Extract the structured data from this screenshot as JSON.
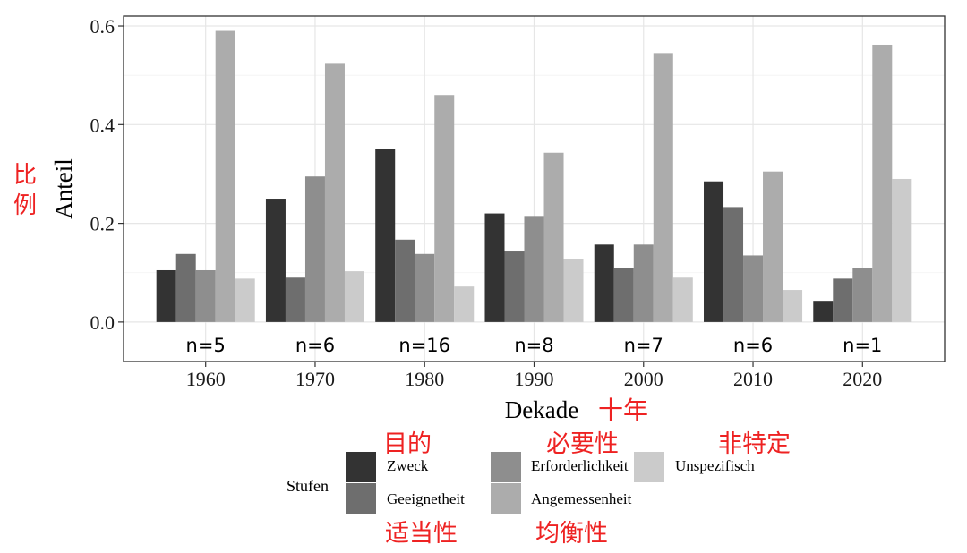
{
  "chart_data": {
    "type": "bar",
    "categories": [
      "1960",
      "1970",
      "1980",
      "1990",
      "2000",
      "2010",
      "2020"
    ],
    "n_labels": [
      "n=5",
      "n=6",
      "n=16",
      "n=8",
      "n=7",
      "n=6",
      "n=1"
    ],
    "series": [
      {
        "name": "Zweck",
        "color": "#333333",
        "values": [
          0.105,
          0.25,
          0.35,
          0.22,
          0.157,
          0.285,
          0.043
        ]
      },
      {
        "name": "Geeignetheit",
        "color": "#6e6e6e",
        "values": [
          0.138,
          0.09,
          0.167,
          0.143,
          0.11,
          0.233,
          0.088
        ]
      },
      {
        "name": "Erforderlichkeit",
        "color": "#8e8e8e",
        "values": [
          0.105,
          0.295,
          0.138,
          0.215,
          0.157,
          0.135,
          0.11
        ]
      },
      {
        "name": "Angemessenheit",
        "color": "#acacac",
        "values": [
          0.59,
          0.525,
          0.46,
          0.343,
          0.545,
          0.305,
          0.562
        ]
      },
      {
        "name": "Unspezifisch",
        "color": "#cbcbcb",
        "values": [
          0.088,
          0.103,
          0.072,
          0.128,
          0.09,
          0.065,
          0.29
        ]
      }
    ],
    "y_ticks": [
      "0.0",
      "0.2",
      "0.4",
      "0.6"
    ],
    "xlabel": "Dekade",
    "ylabel": "Anteil",
    "ylim": [
      -0.08,
      0.62
    ],
    "grid": true,
    "legend": {
      "title": "Stufen",
      "position": "bottom"
    }
  },
  "annotations": {
    "ylabel_cn": [
      "比",
      "例"
    ],
    "xlabel_cn": "十年",
    "legend_cn": [
      "目的",
      "适当性",
      "必要性",
      "均衡性",
      "非特定"
    ]
  }
}
